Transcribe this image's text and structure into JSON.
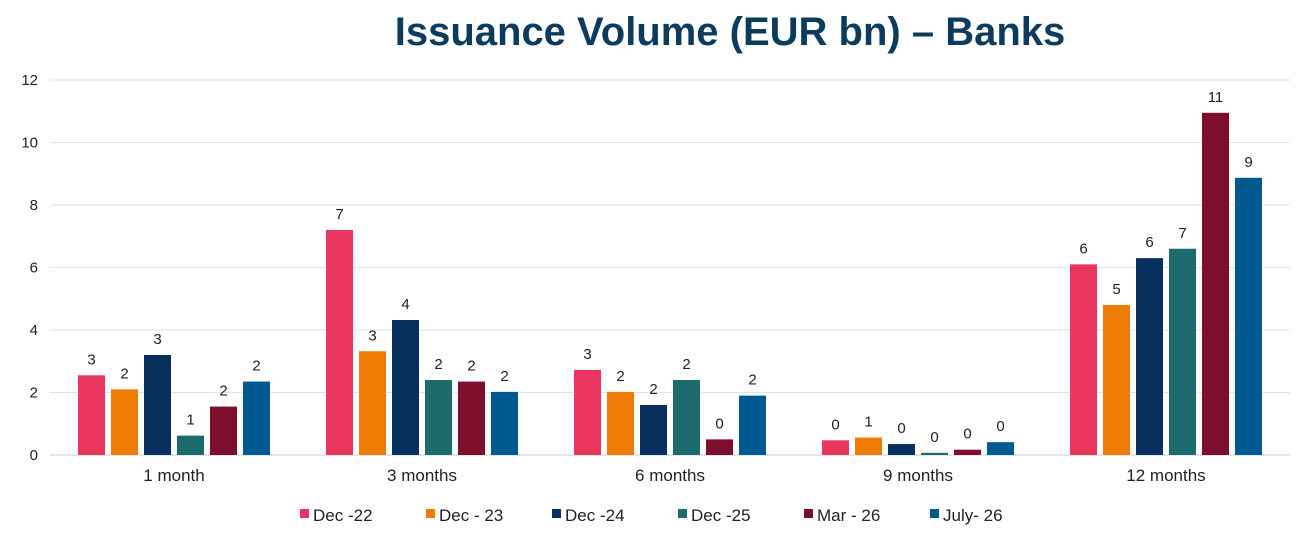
{
  "chart_data": {
    "type": "bar",
    "title": "Issuance Volume (EUR bn) – Banks",
    "xlabel": "",
    "ylabel": "",
    "ylim": [
      0,
      12
    ],
    "yticks": [
      0,
      2,
      4,
      6,
      8,
      10,
      12
    ],
    "grid": true,
    "legend_position": "bottom",
    "categories": [
      "1 month",
      "3 months",
      "6 months",
      "9 months",
      "12 months"
    ],
    "series": [
      {
        "name": "Dec -22",
        "color": "#e8365f",
        "values": [
          2.55,
          7.2,
          2.72,
          0.47,
          6.1
        ],
        "labels": [
          "3",
          "7",
          "3",
          "0",
          "6"
        ]
      },
      {
        "name": "Dec - 23",
        "color": "#ef7d05",
        "values": [
          2.1,
          3.32,
          2.02,
          0.56,
          4.8
        ],
        "labels": [
          "2",
          "3",
          "2",
          "1",
          "5"
        ]
      },
      {
        "name": "Dec -24",
        "color": "#07305e",
        "values": [
          3.2,
          4.32,
          1.6,
          0.35,
          6.3
        ],
        "labels": [
          "3",
          "4",
          "2",
          "0",
          "6"
        ]
      },
      {
        "name": "Dec -25",
        "color": "#1e6b6c",
        "values": [
          0.62,
          2.4,
          2.4,
          0.07,
          6.6
        ],
        "labels": [
          "1",
          "2",
          "2",
          "0",
          "7"
        ]
      },
      {
        "name": "Mar - 26",
        "color": "#7e0f2c",
        "values": [
          1.55,
          2.35,
          0.5,
          0.17,
          10.95
        ],
        "labels": [
          "2",
          "2",
          "0",
          "0",
          "11"
        ]
      },
      {
        "name": "July- 26",
        "color": "#005a8f",
        "values": [
          2.35,
          2.02,
          1.9,
          0.41,
          8.87
        ],
        "labels": [
          "2",
          "2",
          "2",
          "0",
          "9"
        ]
      }
    ]
  }
}
